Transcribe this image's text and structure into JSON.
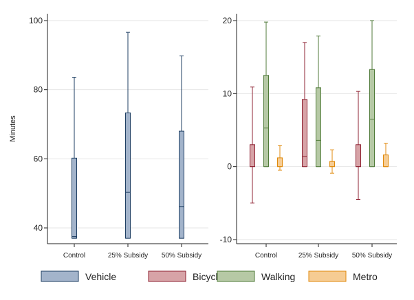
{
  "chart_data": [
    {
      "type": "box",
      "title": "",
      "xlabel": "",
      "ylabel": "Minutes",
      "categories": [
        "Control",
        "25% Subsidy",
        "50% Subsidy"
      ],
      "yticks": [
        40,
        60,
        80,
        100
      ],
      "ylim": [
        35,
        102
      ],
      "grid": true,
      "series": [
        {
          "name": "Vehicle",
          "boxes": [
            {
              "low": 37,
              "q1": 37,
              "median": 37.5,
              "q3": 60.2,
              "high": 83.6
            },
            {
              "low": 37,
              "q1": 37,
              "median": 50.3,
              "q3": 73.3,
              "high": 96.6
            },
            {
              "low": 37,
              "q1": 37,
              "median": 46.2,
              "q3": 68.0,
              "high": 89.8
            }
          ]
        }
      ]
    },
    {
      "type": "box",
      "title": "",
      "xlabel": "",
      "ylabel": "",
      "categories": [
        "Control",
        "25% Subsidy",
        "50% Subsidy"
      ],
      "yticks": [
        -10,
        0,
        10,
        20
      ],
      "ylim": [
        -10.5,
        20.5
      ],
      "grid": true,
      "series": [
        {
          "name": "Bicycle",
          "boxes": [
            {
              "low": -5.0,
              "q1": 0,
              "median": 0,
              "q3": 3.0,
              "high": 10.9
            },
            {
              "low": 0,
              "q1": 0,
              "median": 1.4,
              "q3": 9.2,
              "high": 17.0
            },
            {
              "low": -4.5,
              "q1": 0,
              "median": 0,
              "q3": 3.0,
              "high": 10.3
            }
          ]
        },
        {
          "name": "Walking",
          "boxes": [
            {
              "low": 0,
              "q1": 0,
              "median": 5.3,
              "q3": 12.5,
              "high": 19.8
            },
            {
              "low": 0,
              "q1": 0,
              "median": 3.6,
              "q3": 10.8,
              "high": 17.9
            },
            {
              "low": 0,
              "q1": 0,
              "median": 6.5,
              "q3": 13.3,
              "high": 20.0
            }
          ]
        },
        {
          "name": "Metro",
          "boxes": [
            {
              "low": -0.5,
              "q1": 0,
              "median": 0,
              "q3": 1.2,
              "high": 2.9
            },
            {
              "low": -0.9,
              "q1": 0,
              "median": 0,
              "q3": 0.7,
              "high": 2.3
            },
            {
              "low": 0,
              "q1": 0,
              "median": 0,
              "q3": 1.6,
              "high": 3.2
            }
          ]
        }
      ]
    }
  ],
  "legend": {
    "placement": "bottom",
    "items": [
      {
        "label": "Vehicle",
        "fill": "#a3b4cb",
        "stroke": "#1f3f63"
      },
      {
        "label": "Bicycle",
        "fill": "#d7a3a7",
        "stroke": "#8f2333"
      },
      {
        "label": "Walking",
        "fill": "#b6c9a5",
        "stroke": "#4f7a38"
      },
      {
        "label": "Metro",
        "fill": "#f6cc93",
        "stroke": "#e08a0c"
      }
    ]
  },
  "colors": {
    "Vehicle": {
      "fill": "#a3b4cb",
      "stroke": "#1f3f63"
    },
    "Bicycle": {
      "fill": "#d7a3a7",
      "stroke": "#8f2333"
    },
    "Walking": {
      "fill": "#b6c9a5",
      "stroke": "#4f7a38"
    },
    "Metro": {
      "fill": "#f6cc93",
      "stroke": "#e08a0c"
    },
    "grid": "#e6e6e6",
    "axis": "#222222"
  }
}
